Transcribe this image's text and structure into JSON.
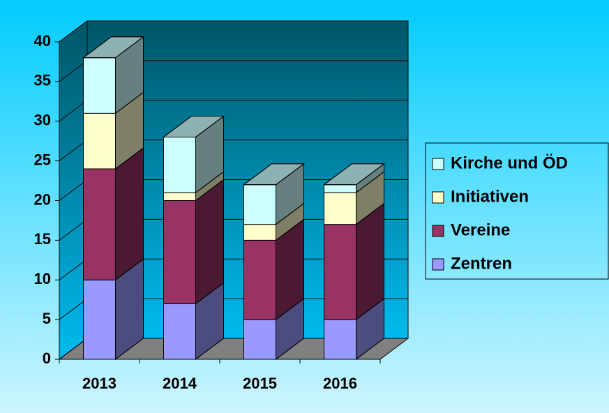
{
  "chart_data": {
    "type": "bar3d_stacked",
    "categories": [
      "2013",
      "2014",
      "2015",
      "2016"
    ],
    "series": [
      {
        "name": "Zentren",
        "color": "#9999ff",
        "values": [
          10,
          7,
          5,
          5
        ]
      },
      {
        "name": "Vereine",
        "color": "#993366",
        "values": [
          14,
          13,
          10,
          12
        ]
      },
      {
        "name": "Initiativen",
        "color": "#ffffcc",
        "values": [
          7,
          1,
          2,
          4
        ]
      },
      {
        "name": "Kirche und ÖD",
        "color": "#ccffff",
        "values": [
          7,
          7,
          5,
          1
        ]
      }
    ],
    "ylim": [
      0,
      40
    ],
    "yticks": [
      0,
      5,
      10,
      15,
      20,
      25,
      30,
      35,
      40
    ],
    "grid": true,
    "legend": "right"
  }
}
